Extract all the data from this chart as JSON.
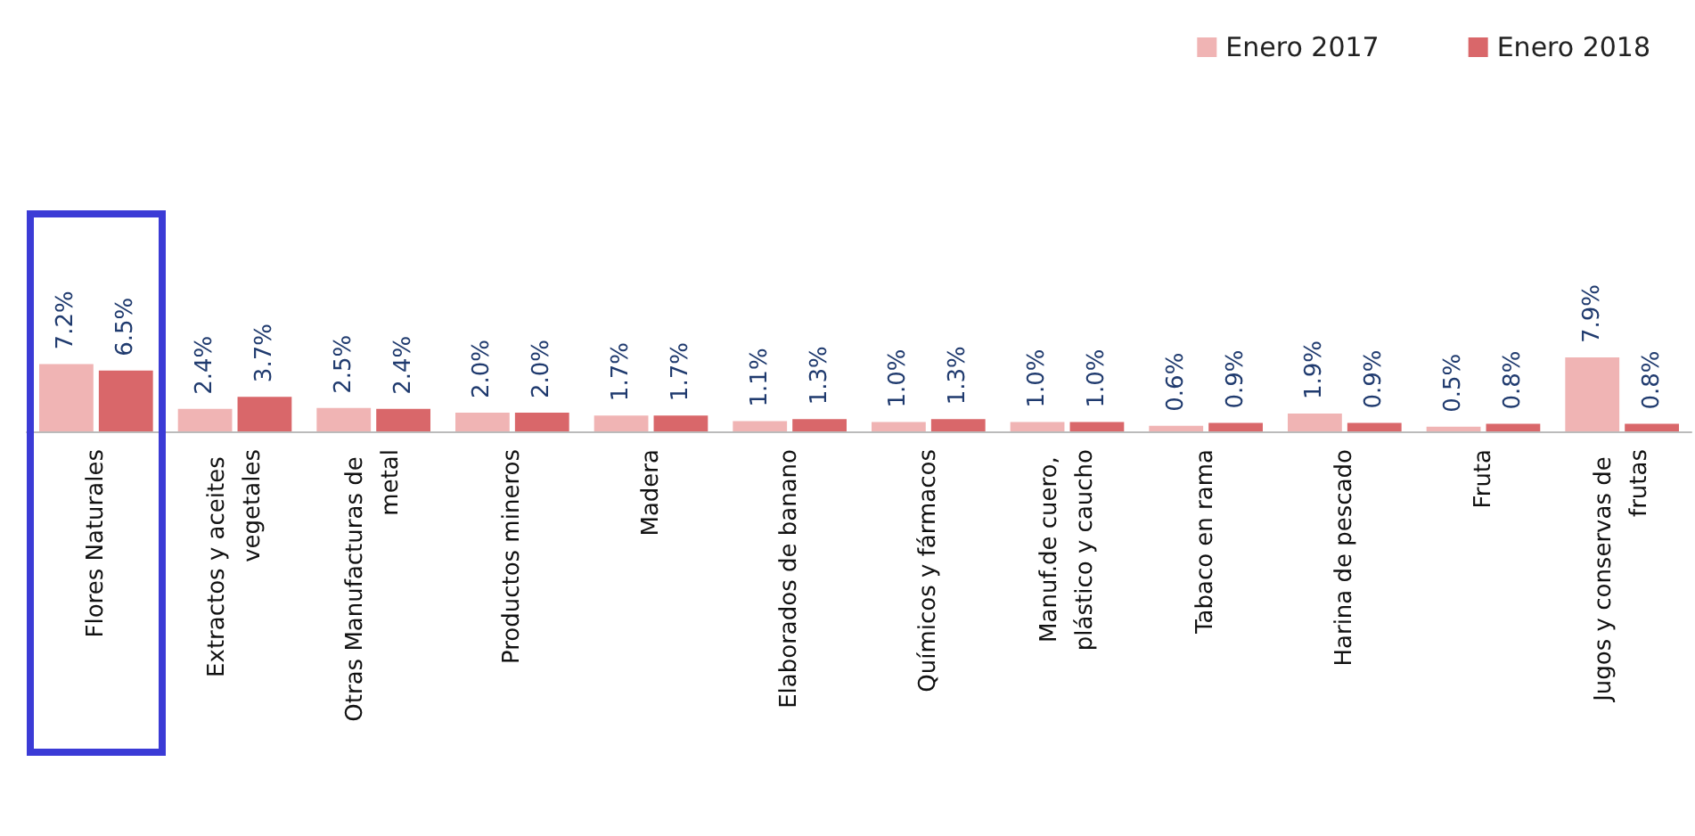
{
  "chart_data": {
    "type": "bar",
    "categories": [
      "Flores Naturales",
      "Extractos y aceites vegetales",
      "Otras Manufacturas de metal",
      "Productos mineros",
      "Madera",
      "Elaborados de banano",
      "Químicos y fármacos",
      "Manuf.de cuero, plástico y caucho",
      "Tabaco en rama",
      "Harina de pescado",
      "Fruta",
      "Jugos y conservas de frutas"
    ],
    "series": [
      {
        "name": "Enero 2017",
        "color": "#f0b4b4",
        "values": [
          7.2,
          2.4,
          2.5,
          2.0,
          1.7,
          1.1,
          1.0,
          1.0,
          0.6,
          1.9,
          0.5,
          7.9
        ],
        "value_labels": [
          "7.2%",
          "2.4%",
          "2.5%",
          "2.0%",
          "1.7%",
          "1.1%",
          "1.0%",
          "1.0%",
          "0.6%",
          "1.9%",
          "0.5%",
          "7.9%"
        ]
      },
      {
        "name": "Enero 2018",
        "color": "#d9676a",
        "values": [
          6.5,
          3.7,
          2.4,
          2.0,
          1.7,
          1.3,
          1.3,
          1.0,
          0.9,
          0.9,
          0.8,
          0.8
        ],
        "value_labels": [
          "6.5%",
          "3.7%",
          "2.4%",
          "2.0%",
          "1.7%",
          "1.3%",
          "1.3%",
          "1.0%",
          "0.9%",
          "0.9%",
          "0.8%",
          "0.8%"
        ]
      }
    ],
    "legend": "top right",
    "grid": false
  }
}
